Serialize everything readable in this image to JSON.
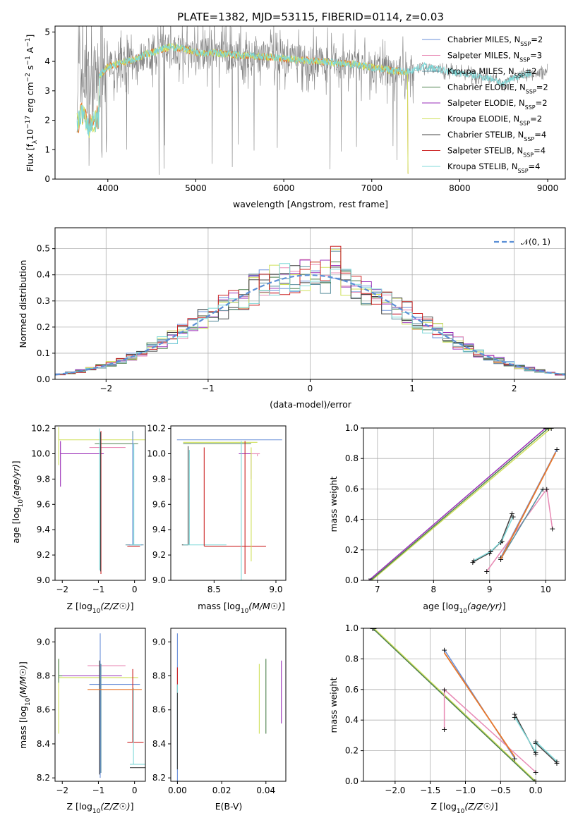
{
  "colors": {
    "Chabrier MILES": "#6a8fd8",
    "Salpeter MILES": "#e889b4",
    "Kroupa MILES": "#5a8f9e",
    "Chabrier ELODIE": "#4b7f4b",
    "Salpeter ELODIE": "#9a2fb8",
    "Kroupa ELODIE": "#cfe05a",
    "Chabrier STELIB": "#444444",
    "Salpeter STELIB": "#cc2222",
    "Kroupa STELIB": "#7fd8d8",
    "data": "#808080",
    "model_orange": "#e8772a",
    "gaussian": "#5b8fd6"
  },
  "chart_data": [
    {
      "id": "spectrum",
      "type": "line",
      "title": "PLATE=1382, MJD=53115, FIBERID=0114, z=0.03",
      "xlabel": "wavelength [Angstrom, rest frame]",
      "ylabel": "Flux [f_λ 10^-17 erg cm^-2 s^-1 A^-1]",
      "xlim": [
        3400,
        9200
      ],
      "ylim": [
        0,
        5.2
      ],
      "xticks": [
        4000,
        5000,
        6000,
        7000,
        8000,
        9000
      ],
      "yticks": [
        0,
        1,
        2,
        3,
        4,
        5
      ],
      "legend_position": "top-right",
      "legend": [
        {
          "label": "Chabrier MILES, N",
          "sub": "SSP",
          "suffix": "=2"
        },
        {
          "label": "Salpeter MILES, N",
          "sub": "SSP",
          "suffix": "=3"
        },
        {
          "label": "Kroupa MILES, N",
          "sub": "SSP",
          "suffix": "=2"
        },
        {
          "label": "Chabrier ELODIE, N",
          "sub": "SSP",
          "suffix": "=2"
        },
        {
          "label": "Salpeter ELODIE, N",
          "sub": "SSP",
          "suffix": "=2"
        },
        {
          "label": "Kroupa ELODIE, N",
          "sub": "SSP",
          "suffix": "=2"
        },
        {
          "label": "Chabrier STELIB, N",
          "sub": "SSP",
          "suffix": "=4"
        },
        {
          "label": "Salpeter STELIB, N",
          "sub": "SSP",
          "suffix": "=4"
        },
        {
          "label": "Kroupa STELIB, N",
          "sub": "SSP",
          "suffix": "=4"
        }
      ],
      "continuum": {
        "x": [
          3650,
          3700,
          3800,
          3900,
          4000,
          4100,
          4200,
          4300,
          4400,
          4500,
          4600,
          4700,
          4800,
          4900,
          5000,
          5100,
          5200,
          5300,
          5400,
          5500,
          5600,
          5800,
          6000,
          6200,
          6400,
          6600,
          6800,
          7000,
          7200,
          7400,
          7500,
          7600,
          7700,
          7800,
          8000,
          8200,
          8400,
          8500,
          8600,
          8800,
          9000
        ],
        "y": [
          3.3,
          3.6,
          3.2,
          3.5,
          3.8,
          3.9,
          4.0,
          4.05,
          4.2,
          4.3,
          4.4,
          4.5,
          4.45,
          4.4,
          4.3,
          4.25,
          4.3,
          4.25,
          4.25,
          4.2,
          4.2,
          4.15,
          4.1,
          4.05,
          4.0,
          3.95,
          3.9,
          3.8,
          3.7,
          3.65,
          3.75,
          3.85,
          3.75,
          3.7,
          3.6,
          3.5,
          3.4,
          3.2,
          3.45,
          3.6,
          3.6
        ]
      },
      "models_end_x": 7420,
      "data_end_x": 7480
    },
    {
      "id": "residuals",
      "type": "step",
      "xlabel": "(data-model)/error",
      "ylabel": "Normed distribution",
      "xlim": [
        -2.5,
        2.5
      ],
      "ylim": [
        0,
        0.58
      ],
      "xticks": [
        -2,
        -1,
        0,
        1,
        2
      ],
      "yticks": [
        0.0,
        0.1,
        0.2,
        0.3,
        0.4,
        0.5
      ],
      "legend_position": "top-right",
      "legend": [
        {
          "label": "𝒩(0, 1)"
        }
      ],
      "bin_width": 0.1
    },
    {
      "id": "age_vs_Z",
      "type": "errorbar",
      "xlabel": "Z [log10(Z/Z☉)]",
      "ylabel": "age [log10(age/yr)]",
      "xlim": [
        -2.2,
        0.3
      ],
      "ylim": [
        9.0,
        10.22
      ],
      "xticks": [
        -2,
        -1,
        0
      ],
      "yticks": [
        9.0,
        9.2,
        9.4,
        9.6,
        9.8,
        10.0,
        10.2
      ]
    },
    {
      "id": "age_vs_mass",
      "type": "errorbar",
      "xlabel": "mass [log10(M/M☉)]",
      "xlim": [
        8.15,
        9.08
      ],
      "ylim": [
        9.0,
        10.22
      ],
      "xticks": [
        8.5,
        9.0
      ],
      "yticks": [
        9.0,
        9.2,
        9.4,
        9.6,
        9.8,
        10.0,
        10.2
      ]
    },
    {
      "id": "weight_vs_age",
      "type": "line",
      "xlabel": "age [log10(age/yr)]",
      "ylabel": "mass weight",
      "xlim": [
        6.75,
        10.35
      ],
      "ylim": [
        0,
        1.0
      ],
      "xticks": [
        7,
        8,
        9,
        10
      ],
      "yticks": [
        0.0,
        0.2,
        0.4,
        0.6,
        0.8,
        1.0
      ]
    },
    {
      "id": "mass_vs_Z",
      "type": "errorbar",
      "xlabel": "Z [log10(Z/Z☉)]",
      "ylabel": "mass [log10(M/M☉)]",
      "xlim": [
        -2.2,
        0.3
      ],
      "ylim": [
        8.18,
        9.08
      ],
      "xticks": [
        -2,
        -1,
        0
      ],
      "yticks": [
        8.2,
        8.4,
        8.6,
        8.8,
        9.0
      ]
    },
    {
      "id": "mass_vs_ebv",
      "type": "errorbar",
      "xlabel": "E(B-V)",
      "xlim": [
        -0.003,
        0.049
      ],
      "ylim": [
        8.18,
        9.08
      ],
      "xticks": [
        0.0,
        0.02,
        0.04
      ],
      "yticks": [
        8.2,
        8.4,
        8.6,
        8.8,
        9.0
      ]
    },
    {
      "id": "weight_vs_Z",
      "type": "line",
      "xlabel": "Z [log10(Z/Z☉)]",
      "ylabel": "mass weight",
      "xlim": [
        -2.45,
        0.42
      ],
      "ylim": [
        0,
        1.0
      ],
      "xticks": [
        -2.0,
        -1.5,
        -1.0,
        -0.5,
        0.0
      ],
      "yticks": [
        0.0,
        0.2,
        0.4,
        0.6,
        0.8,
        1.0
      ]
    }
  ]
}
